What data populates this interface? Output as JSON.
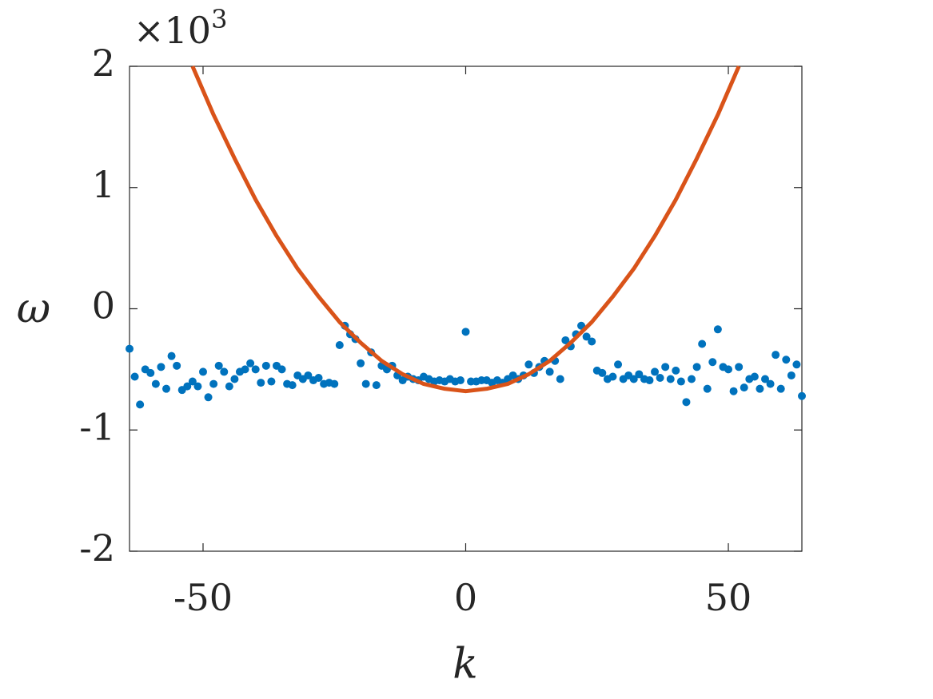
{
  "chart_data": {
    "type": "scatter",
    "x_label": "k",
    "y_label": "ω",
    "y_multiplier": {
      "base": "×10",
      "power": "3"
    },
    "xlim": [
      -64,
      64
    ],
    "xticks": [
      -50,
      0,
      50
    ],
    "ylim": [
      -2,
      2
    ],
    "yticks": [
      -2,
      -1,
      0,
      1,
      2
    ],
    "series": [
      {
        "type": "scatter",
        "color": "#0072bd",
        "x": [
          -64,
          -63,
          -62,
          -61,
          -60,
          -59,
          -58,
          -57,
          -56,
          -55,
          -54,
          -53,
          -52,
          -51,
          -50,
          -49,
          -48,
          -47,
          -46,
          -45,
          -44,
          -43,
          -42,
          -41,
          -40,
          -39,
          -38,
          -37,
          -36,
          -35,
          -34,
          -33,
          -32,
          -31,
          -30,
          -29,
          -28,
          -27,
          -26,
          -25,
          -24,
          -23,
          -22,
          -21,
          -20,
          -19,
          -18,
          -17,
          -16,
          -15,
          -14,
          -13,
          -12,
          -11,
          -10,
          -9,
          -8,
          -7,
          -6,
          -5,
          -4,
          -3,
          -2,
          -1,
          0,
          1,
          2,
          3,
          4,
          5,
          6,
          7,
          8,
          9,
          10,
          11,
          12,
          13,
          14,
          15,
          16,
          17,
          18,
          19,
          20,
          21,
          22,
          23,
          24,
          25,
          26,
          27,
          28,
          29,
          30,
          31,
          32,
          33,
          34,
          35,
          36,
          37,
          38,
          39,
          40,
          41,
          42,
          43,
          44,
          45,
          46,
          47,
          48,
          49,
          50,
          51,
          52,
          53,
          54,
          55,
          56,
          57,
          58,
          59,
          60,
          61,
          62,
          63,
          64
        ],
        "values": [
          -0.33,
          -0.56,
          -0.79,
          -0.5,
          -0.53,
          -0.62,
          -0.48,
          -0.66,
          -0.39,
          -0.47,
          -0.67,
          -0.64,
          -0.6,
          -0.64,
          -0.52,
          -0.73,
          -0.62,
          -0.47,
          -0.52,
          -0.64,
          -0.58,
          -0.52,
          -0.5,
          -0.45,
          -0.5,
          -0.61,
          -0.47,
          -0.6,
          -0.47,
          -0.5,
          -0.62,
          -0.63,
          -0.55,
          -0.58,
          -0.55,
          -0.59,
          -0.57,
          -0.62,
          -0.61,
          -0.62,
          -0.3,
          -0.14,
          -0.21,
          -0.25,
          -0.45,
          -0.62,
          -0.36,
          -0.63,
          -0.47,
          -0.5,
          -0.47,
          -0.55,
          -0.59,
          -0.56,
          -0.58,
          -0.59,
          -0.56,
          -0.58,
          -0.6,
          -0.59,
          -0.6,
          -0.58,
          -0.6,
          -0.59,
          -0.19,
          -0.6,
          -0.6,
          -0.59,
          -0.59,
          -0.61,
          -0.59,
          -0.61,
          -0.58,
          -0.55,
          -0.58,
          -0.55,
          -0.46,
          -0.53,
          -0.48,
          -0.43,
          -0.52,
          -0.43,
          -0.58,
          -0.26,
          -0.31,
          -0.21,
          -0.14,
          -0.23,
          -0.27,
          -0.51,
          -0.53,
          -0.58,
          -0.56,
          -0.46,
          -0.58,
          -0.55,
          -0.58,
          -0.54,
          -0.58,
          -0.59,
          -0.52,
          -0.57,
          -0.48,
          -0.58,
          -0.51,
          -0.6,
          -0.77,
          -0.58,
          -0.48,
          -0.29,
          -0.66,
          -0.44,
          -0.17,
          -0.48,
          -0.5,
          -0.68,
          -0.48,
          -0.65,
          -0.58,
          -0.56,
          -0.66,
          -0.58,
          -0.62,
          -0.38,
          -0.66,
          -0.42,
          -0.55,
          -0.46,
          -0.72
        ]
      },
      {
        "type": "line",
        "color": "#d95319",
        "x": [
          -52,
          -48,
          -44,
          -40,
          -36,
          -32,
          -28,
          -24,
          -20,
          -16,
          -12,
          -8,
          -4,
          0,
          4,
          8,
          12,
          16,
          20,
          24,
          28,
          32,
          36,
          40,
          44,
          48,
          52
        ],
        "values": [
          2.0,
          1.6,
          1.24,
          0.9,
          0.6,
          0.33,
          0.1,
          -0.11,
          -0.28,
          -0.43,
          -0.54,
          -0.62,
          -0.66,
          -0.68,
          -0.66,
          -0.62,
          -0.54,
          -0.43,
          -0.28,
          -0.11,
          0.1,
          0.33,
          0.6,
          0.9,
          1.24,
          1.6,
          2.0
        ]
      }
    ]
  }
}
